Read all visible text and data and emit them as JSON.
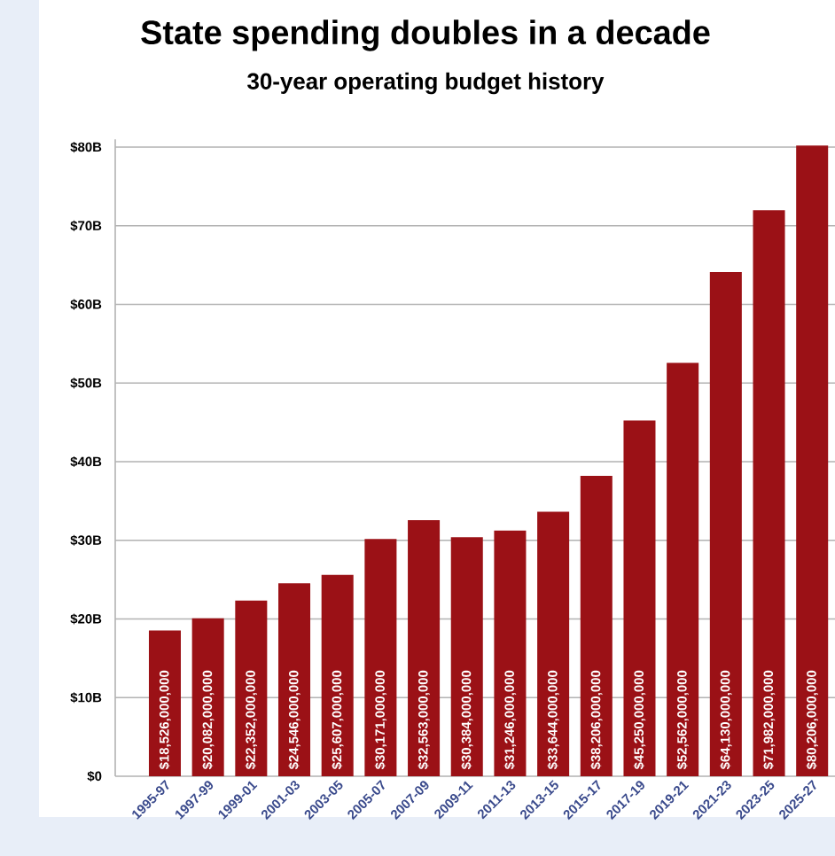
{
  "chart_data": {
    "type": "bar",
    "title": "State spending doubles in a decade",
    "subtitle": "30-year operating budget history",
    "categories": [
      "1995-97",
      "1997-99",
      "1999-01",
      "2001-03",
      "2003-05",
      "2005-07",
      "2007-09",
      "2009-11",
      "2011-13",
      "2013-15",
      "2015-17",
      "2017-19",
      "2019-21",
      "2021-23",
      "2023-25",
      "2025-27"
    ],
    "values": [
      18526000000,
      20082000000,
      22352000000,
      24546000000,
      25607000000,
      30171000000,
      32563000000,
      30384000000,
      31246000000,
      33644000000,
      38206000000,
      45250000000,
      52562000000,
      64130000000,
      71982000000,
      80206000000
    ],
    "value_labels": [
      "$18,526,000,000",
      "$20,082,000,000",
      "$22,352,000,000",
      "$24,546,000,000",
      "$25,607,000,000",
      "$30,171,000,000",
      "$32,563,000,000",
      "$30,384,000,000",
      "$31,246,000,000",
      "$33,644,000,000",
      "$38,206,000,000",
      "$45,250,000,000",
      "$52,562,000,000",
      "$64,130,000,000",
      "$71,982,000,000",
      "$80,206,000,000"
    ],
    "color": "#9b1116",
    "ylim": [
      0,
      81000000000
    ],
    "yticks": [
      {
        "value": 0,
        "label": "$0"
      },
      {
        "value": 10000000000,
        "label": "$10B"
      },
      {
        "value": 20000000000,
        "label": "$20B"
      },
      {
        "value": 30000000000,
        "label": "$30B"
      },
      {
        "value": 40000000000,
        "label": "$40B"
      },
      {
        "value": 50000000000,
        "label": "$50B"
      },
      {
        "value": 60000000000,
        "label": "$60B"
      },
      {
        "value": 70000000000,
        "label": "$70B"
      },
      {
        "value": 80000000000,
        "label": "$80B"
      }
    ],
    "grid": "y"
  }
}
